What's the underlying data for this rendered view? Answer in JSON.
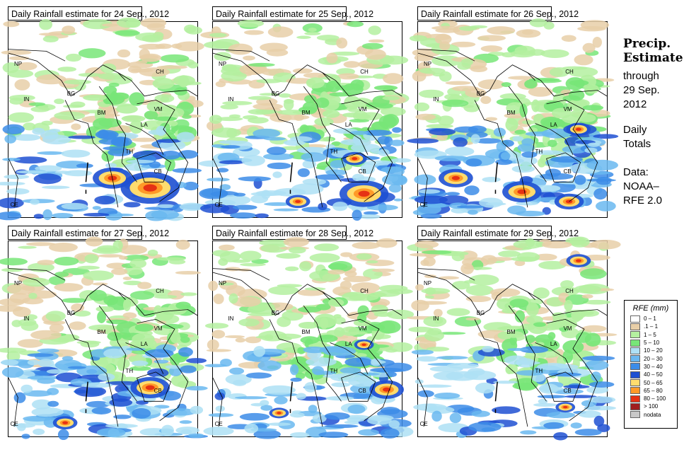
{
  "panels": [
    {
      "title": "Daily Rainfall estimate for  24 Sep., 2012",
      "intensity": 0.55,
      "seed": 11,
      "hotspots": [
        [
          0.75,
          0.85,
          0.12
        ],
        [
          0.55,
          0.8,
          0.08
        ]
      ]
    },
    {
      "title": "Daily Rainfall estimate for  25 Sep., 2012",
      "intensity": 0.6,
      "seed": 23,
      "hotspots": [
        [
          0.8,
          0.88,
          0.1
        ],
        [
          0.45,
          0.92,
          0.05
        ],
        [
          0.75,
          0.7,
          0.05
        ]
      ]
    },
    {
      "title": "Daily Rainfall estimate for  26 Sep., 2012",
      "intensity": 0.7,
      "seed": 37,
      "hotspots": [
        [
          0.55,
          0.87,
          0.08
        ],
        [
          0.2,
          0.8,
          0.07
        ],
        [
          0.85,
          0.55,
          0.05
        ],
        [
          0.8,
          0.92,
          0.06
        ]
      ]
    },
    {
      "title": "Daily Rainfall estimate for  27 Sep., 2012",
      "intensity": 0.7,
      "seed": 41,
      "hotspots": [
        [
          0.75,
          0.75,
          0.08
        ],
        [
          0.3,
          0.93,
          0.05
        ]
      ]
    },
    {
      "title": "Daily Rainfall estimate for  28 Sep., 2012",
      "intensity": 0.6,
      "seed": 53,
      "hotspots": [
        [
          0.92,
          0.76,
          0.07
        ],
        [
          0.8,
          0.53,
          0.04
        ],
        [
          0.35,
          0.88,
          0.04
        ]
      ]
    },
    {
      "title": "Daily Rainfall estimate for  29 Sep., 2012",
      "intensity": 0.5,
      "seed": 67,
      "hotspots": [
        [
          0.85,
          0.1,
          0.05
        ],
        [
          0.78,
          0.85,
          0.04
        ]
      ]
    }
  ],
  "countries": [
    {
      "code": "NP",
      "fx": 0.03,
      "fy": 0.2
    },
    {
      "code": "IN",
      "fx": 0.08,
      "fy": 0.38
    },
    {
      "code": "BG",
      "fx": 0.31,
      "fy": 0.35
    },
    {
      "code": "CH",
      "fx": 0.78,
      "fy": 0.24
    },
    {
      "code": "BM",
      "fx": 0.47,
      "fy": 0.45
    },
    {
      "code": "VM",
      "fx": 0.77,
      "fy": 0.43
    },
    {
      "code": "LA",
      "fx": 0.7,
      "fy": 0.51
    },
    {
      "code": "TH",
      "fx": 0.62,
      "fy": 0.65
    },
    {
      "code": "CB",
      "fx": 0.77,
      "fy": 0.75
    },
    {
      "code": "CE",
      "fx": 0.01,
      "fy": 0.92
    }
  ],
  "side": {
    "title_line1": "Precip.",
    "title_line2": "Estimate",
    "through": "through",
    "date_line1": "29 Sep.",
    "date_line2": "2012",
    "daily_line1": "Daily",
    "daily_line2": "Totals",
    "data_line1": "Data:",
    "data_line2": "NOAA–",
    "data_line3": "RFE 2.0"
  },
  "legend": {
    "title": "RFE (mm)",
    "items": [
      {
        "label": "0 – 1",
        "color": "#ffffff"
      },
      {
        "label": ".1 – 1",
        "color": "#e8cfa8"
      },
      {
        "label": "1 – 5",
        "color": "#b4f0a0"
      },
      {
        "label": "5 – 10",
        "color": "#78e678"
      },
      {
        "label": "10 – 20",
        "color": "#aee0f5"
      },
      {
        "label": "20 – 30",
        "color": "#6ab8f0"
      },
      {
        "label": "30 – 40",
        "color": "#3c8ce8"
      },
      {
        "label": "40 – 50",
        "color": "#1e50d2"
      },
      {
        "label": "50 – 65",
        "color": "#ffdc6e"
      },
      {
        "label": "65 – 80",
        "color": "#ff9a28"
      },
      {
        "label": "80 – 100",
        "color": "#e63214"
      },
      {
        "label": "> 100",
        "color": "#a01e1e"
      },
      {
        "label": "nodata",
        "color": "#c8c8c8"
      }
    ]
  }
}
